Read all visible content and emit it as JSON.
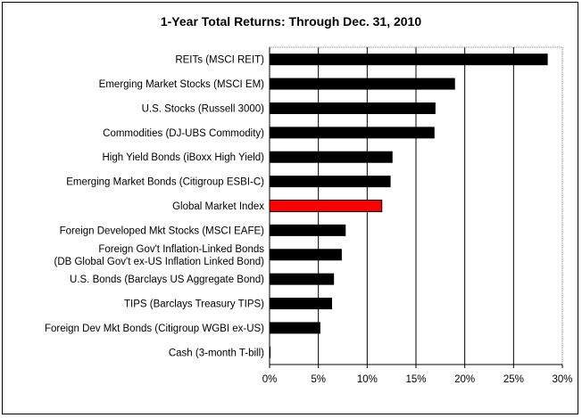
{
  "chart_data": {
    "type": "bar",
    "orientation": "horizontal",
    "title": "1-Year Total Returns: Through Dec. 31, 2010",
    "xlabel": "",
    "ylabel": "",
    "xlim": [
      0,
      30
    ],
    "x_ticks": [
      "0%",
      "5%",
      "10%",
      "15%",
      "20%",
      "25%",
      "30%"
    ],
    "grid": "vertical",
    "legend": "none",
    "categories": [
      [
        "REITs (MSCI REIT)"
      ],
      [
        "Emerging Market Stocks (MSCI EM)"
      ],
      [
        "U.S. Stocks (Russell 3000)"
      ],
      [
        "Commodities (DJ-UBS Commodity)"
      ],
      [
        "High Yield Bonds (iBoxx High Yield)"
      ],
      [
        "Emerging Market Bonds (Citigroup ESBI-C)"
      ],
      [
        "Global Market Index"
      ],
      [
        "Foreign Developed Mkt Stocks (MSCI EAFE)"
      ],
      [
        "Foreign Gov't Inflation-Linked Bonds",
        "(DB Global Gov't ex-US Inflation Linked Bond)"
      ],
      [
        "U.S. Bonds (Barclays US Aggregate Bond)"
      ],
      [
        "TIPS (Barclays Treasury TIPS)"
      ],
      [
        "Foreign Dev Mkt Bonds (Citigroup WGBI ex-US)"
      ],
      [
        "Cash  (3-month T-bill)"
      ]
    ],
    "values": [
      28.5,
      19.0,
      17.0,
      16.9,
      12.6,
      12.4,
      11.5,
      7.8,
      7.4,
      6.6,
      6.4,
      5.2,
      0.1
    ],
    "colors": {
      "bar": "#000000",
      "highlight_bar": "#ff0000",
      "grid": "#000000",
      "border": "#000000",
      "background": "#ffffff"
    },
    "highlight_category": "Global Market Index"
  }
}
